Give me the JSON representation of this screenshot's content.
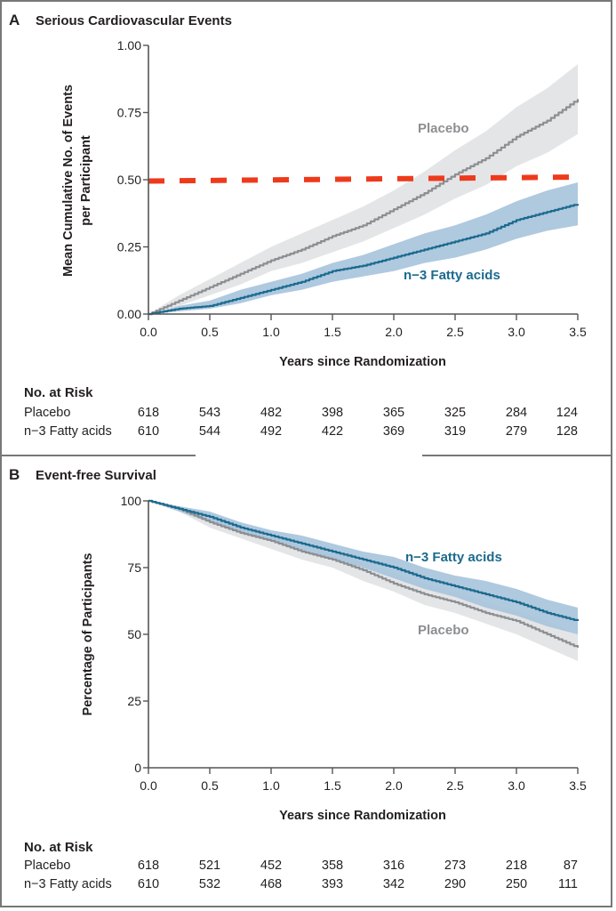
{
  "colors": {
    "placebo_line": "#8c8e91",
    "placebo_band": "#e4e5e7",
    "treatment_line": "#1b6a8e",
    "treatment_band": "#a6c3dc",
    "reference_line": "#ee3a1c",
    "axis": "#555555",
    "frame": "#777777"
  },
  "chart_data": [
    {
      "panel": "A",
      "type": "line",
      "title": "Serious Cardiovascular Events",
      "xlabel": "Years since Randomization",
      "ylabel_lines": [
        "Mean Cumulative No. of Events",
        "per Participant"
      ],
      "xlim": [
        0,
        3.5
      ],
      "ylim": [
        0,
        1.0
      ],
      "x_ticks": [
        0,
        0.5,
        1.0,
        1.5,
        2.0,
        2.5,
        3.0,
        3.5
      ],
      "x_tick_labels": [
        "0.0",
        "0.5",
        "1.0",
        "1.5",
        "2.0",
        "2.5",
        "3.0",
        "3.5"
      ],
      "y_ticks": [
        0,
        0.25,
        0.5,
        0.75,
        1.0
      ],
      "y_tick_labels": [
        "0.00",
        "0.25",
        "0.50",
        "0.75",
        "1.00"
      ],
      "grid": false,
      "reference_line": {
        "style": "dashed",
        "y_start": 0.495,
        "y_end": 0.51
      },
      "x": [
        0,
        0.25,
        0.5,
        0.75,
        1.0,
        1.25,
        1.5,
        1.75,
        2.0,
        2.25,
        2.5,
        2.75,
        3.0,
        3.25,
        3.5
      ],
      "series": [
        {
          "name": "Placebo",
          "label": "Placebo",
          "values": [
            0,
            0.05,
            0.1,
            0.15,
            0.2,
            0.24,
            0.29,
            0.33,
            0.39,
            0.45,
            0.52,
            0.58,
            0.66,
            0.72,
            0.8
          ],
          "ci_lower": [
            0,
            0.03,
            0.07,
            0.11,
            0.16,
            0.19,
            0.23,
            0.27,
            0.32,
            0.37,
            0.43,
            0.48,
            0.55,
            0.6,
            0.67
          ],
          "ci_upper": [
            0,
            0.07,
            0.13,
            0.19,
            0.25,
            0.3,
            0.35,
            0.4,
            0.46,
            0.53,
            0.61,
            0.68,
            0.77,
            0.84,
            0.93
          ]
        },
        {
          "name": "n−3 Fatty acids",
          "label": "n−3 Fatty acids",
          "values": [
            0,
            0.02,
            0.03,
            0.06,
            0.09,
            0.12,
            0.16,
            0.18,
            0.21,
            0.24,
            0.27,
            0.3,
            0.35,
            0.38,
            0.41
          ],
          "ci_lower": [
            0,
            0.01,
            0.02,
            0.04,
            0.07,
            0.09,
            0.12,
            0.14,
            0.16,
            0.19,
            0.21,
            0.24,
            0.28,
            0.31,
            0.33
          ],
          "ci_upper": [
            0,
            0.03,
            0.05,
            0.09,
            0.12,
            0.15,
            0.19,
            0.22,
            0.26,
            0.3,
            0.33,
            0.37,
            0.42,
            0.46,
            0.49
          ]
        }
      ],
      "at_risk": {
        "heading": "No. at Risk",
        "rows": [
          {
            "label": "Placebo",
            "values": [
              618,
              543,
              482,
              398,
              365,
              325,
              284,
              124
            ]
          },
          {
            "label": "n−3 Fatty acids",
            "values": [
              610,
              544,
              492,
              422,
              369,
              319,
              279,
              128
            ]
          }
        ]
      }
    },
    {
      "panel": "B",
      "type": "line",
      "title": "Event-free Survival",
      "xlabel": "Years since Randomization",
      "ylabel_lines": [
        "Percentage of Participants"
      ],
      "xlim": [
        0,
        3.5
      ],
      "ylim": [
        0,
        100
      ],
      "x_ticks": [
        0,
        0.5,
        1.0,
        1.5,
        2.0,
        2.5,
        3.0,
        3.5
      ],
      "x_tick_labels": [
        "0.0",
        "0.5",
        "1.0",
        "1.5",
        "2.0",
        "2.5",
        "3.0",
        "3.5"
      ],
      "y_ticks": [
        0,
        25,
        50,
        75,
        100
      ],
      "y_tick_labels": [
        "0",
        "25",
        "50",
        "75",
        "100"
      ],
      "grid": false,
      "x": [
        0,
        0.25,
        0.5,
        0.75,
        1.0,
        1.25,
        1.5,
        1.75,
        2.0,
        2.25,
        2.5,
        2.75,
        3.0,
        3.25,
        3.5
      ],
      "series": [
        {
          "name": "n−3 Fatty acids",
          "label": "n−3 Fatty acids",
          "values": [
            100,
            97,
            94,
            90,
            87,
            84,
            81,
            78,
            75,
            71,
            68,
            65,
            62,
            58,
            55
          ],
          "ci_lower": [
            100,
            96,
            92,
            88,
            85,
            81,
            78,
            75,
            71,
            67,
            64,
            60,
            57,
            53,
            50
          ],
          "ci_upper": [
            100,
            98,
            96,
            92,
            89,
            87,
            84,
            81,
            79,
            75,
            72,
            70,
            67,
            63,
            60
          ]
        },
        {
          "name": "Placebo",
          "label": "Placebo",
          "values": [
            100,
            97,
            92,
            88,
            85,
            81,
            78,
            74,
            69,
            65,
            62,
            58,
            55,
            50,
            45
          ],
          "ci_lower": [
            100,
            96,
            90,
            86,
            82,
            78,
            75,
            70,
            66,
            61,
            58,
            54,
            50,
            45,
            40
          ],
          "ci_upper": [
            100,
            98,
            94,
            90,
            87,
            84,
            81,
            77,
            73,
            69,
            66,
            62,
            59,
            55,
            50
          ]
        }
      ],
      "at_risk": {
        "heading": "No. at Risk",
        "rows": [
          {
            "label": "Placebo",
            "values": [
              618,
              521,
              452,
              358,
              316,
              273,
              218,
              87
            ]
          },
          {
            "label": "n−3 Fatty acids",
            "values": [
              610,
              532,
              468,
              393,
              342,
              290,
              250,
              111
            ]
          }
        ]
      }
    }
  ]
}
